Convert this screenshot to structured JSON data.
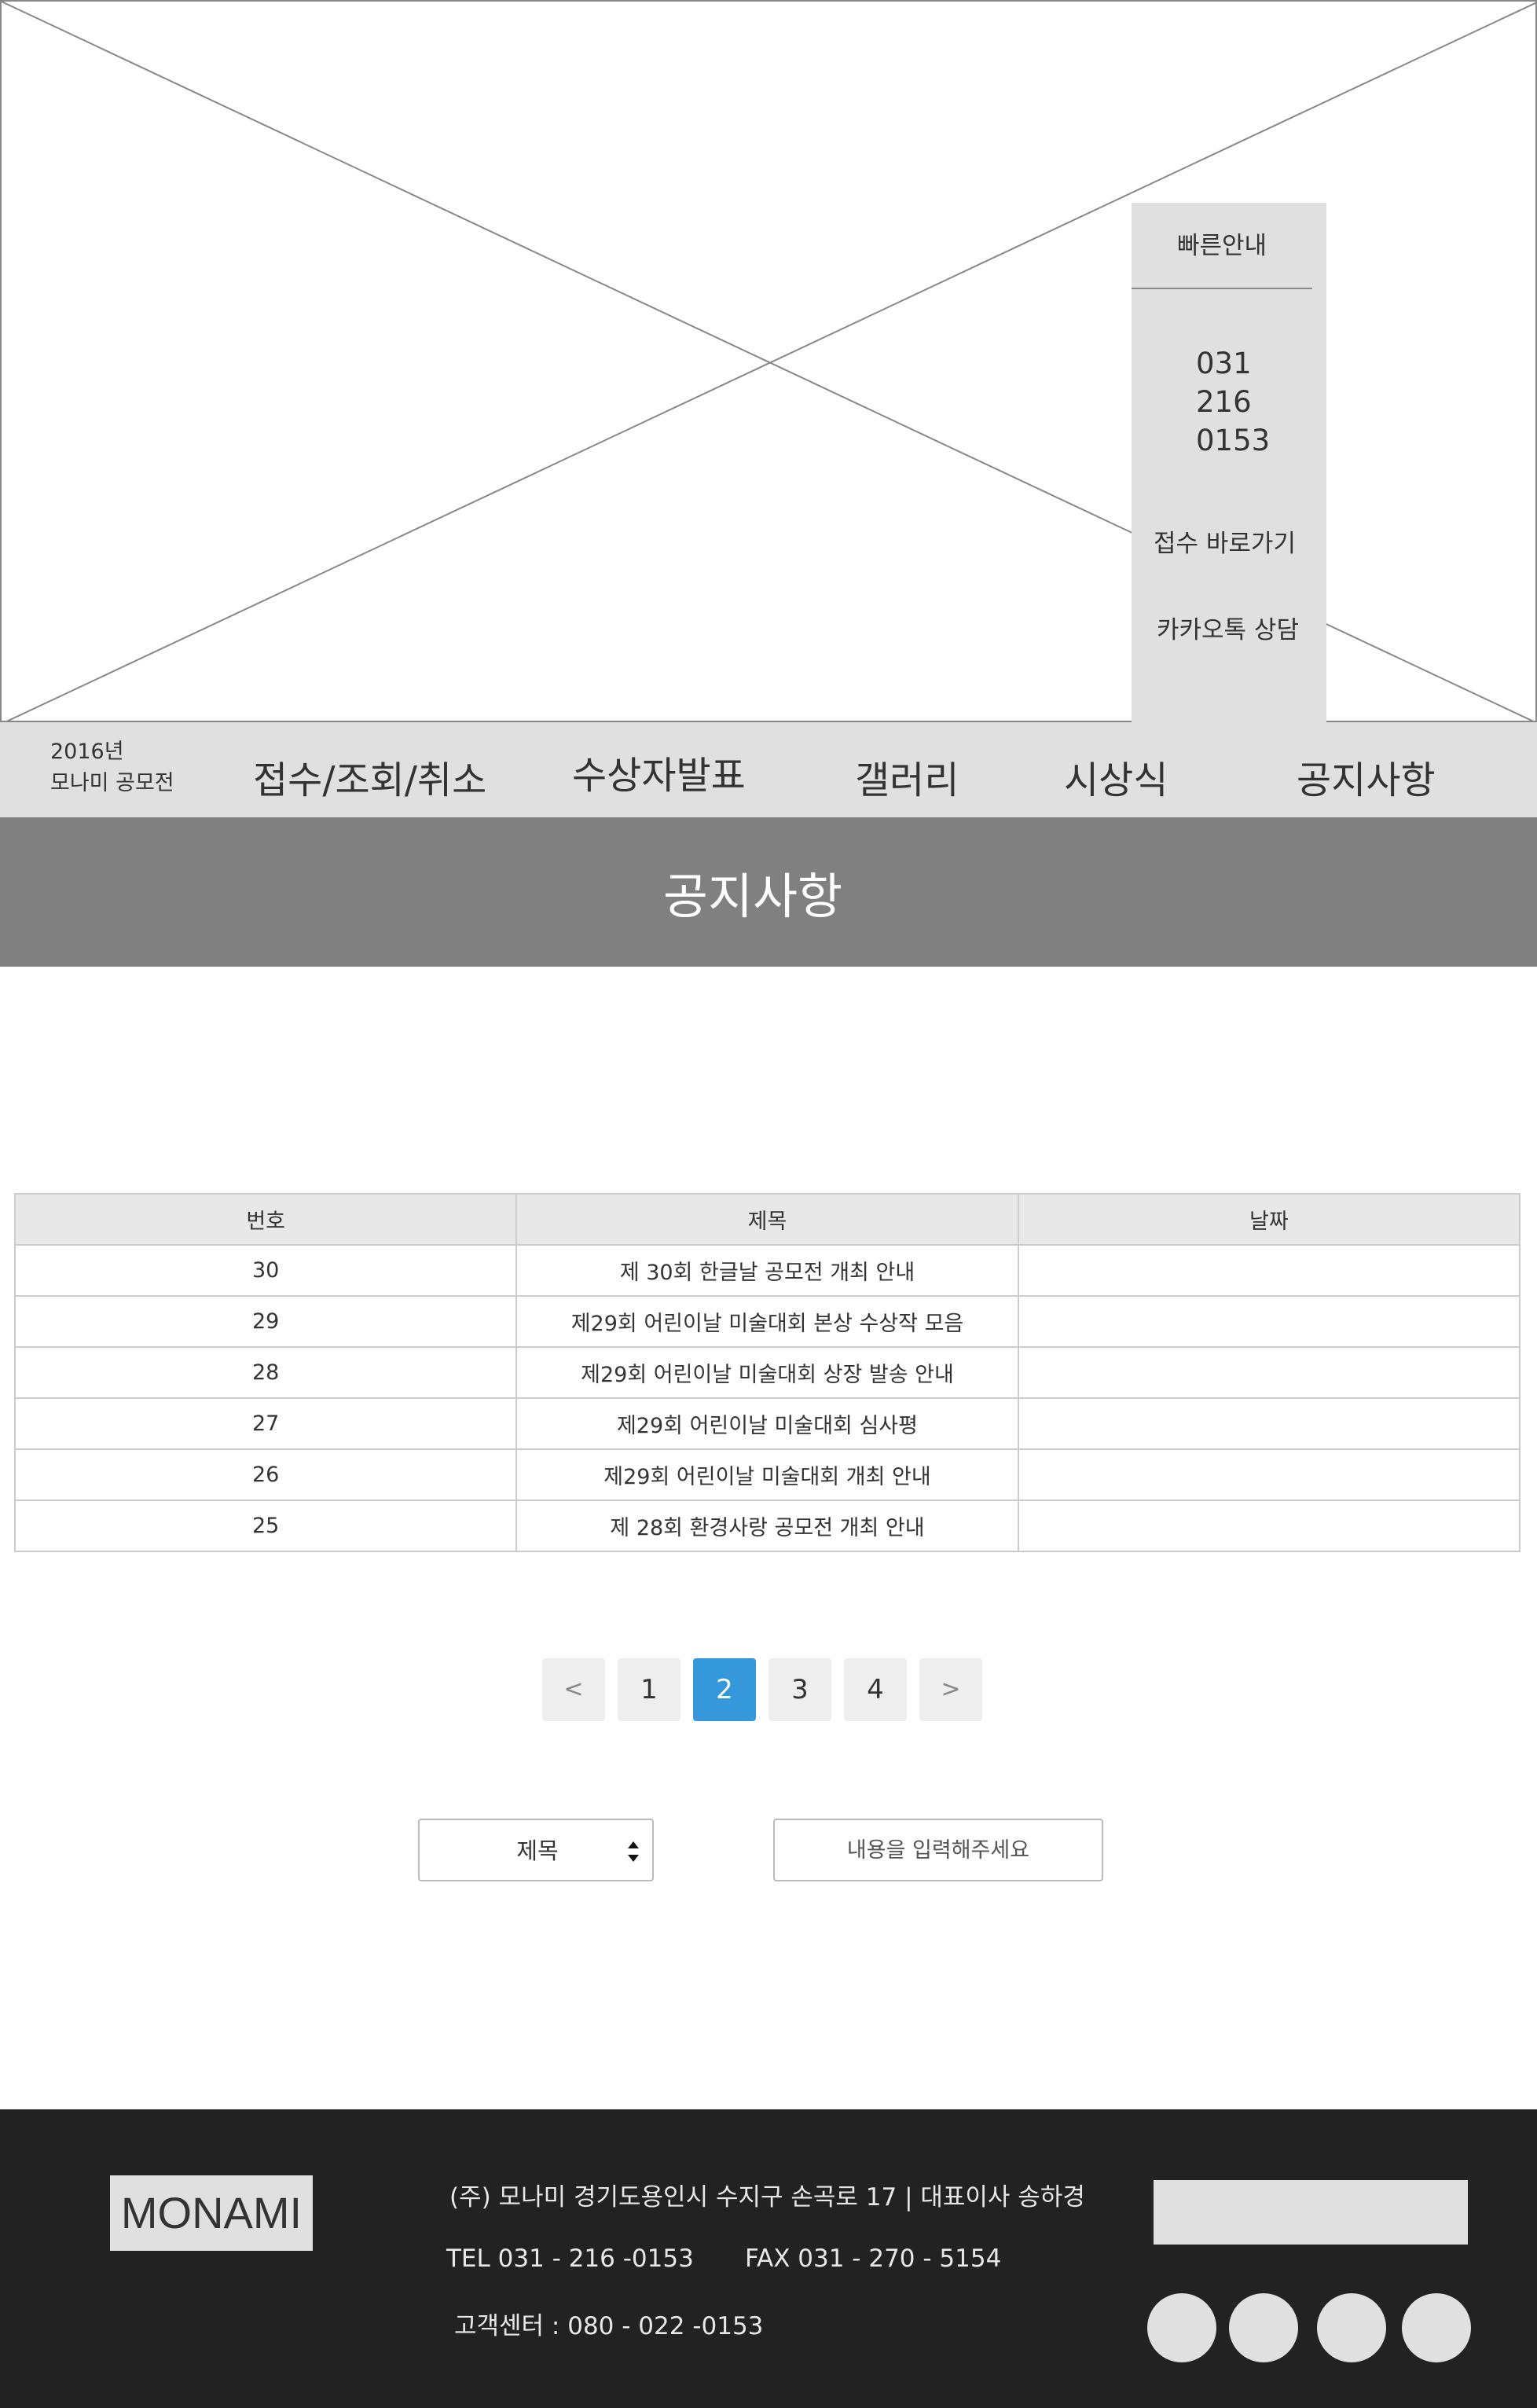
{
  "quick_guide": {
    "title": "빠른안내",
    "phone": [
      "031",
      "216",
      "0153"
    ],
    "apply_link": "접수 바로가기",
    "kakao_link": "카카오톡 상담"
  },
  "nav": {
    "brand_year": "2016년",
    "brand_name": "모나미 공모전",
    "items": [
      "접수/조회/취소",
      "수상자발표",
      "갤러리",
      "시상식",
      "공지사항"
    ]
  },
  "page_title": "공지사항",
  "table": {
    "headers": [
      "번호",
      "제목",
      "날짜"
    ],
    "rows": [
      {
        "num": "30",
        "title": "제 30회  한글날 공모전 개최 안내",
        "date": ""
      },
      {
        "num": "29",
        "title": "제29회 어린이날  미술대회  본상 수상작 모음",
        "date": ""
      },
      {
        "num": "28",
        "title": "제29회 어린이날 미술대회 상장 발송 안내",
        "date": ""
      },
      {
        "num": "27",
        "title": "제29회 어린이날 미술대회  심사평",
        "date": ""
      },
      {
        "num": "26",
        "title": "제29회 어린이날 미술대회  개최 안내",
        "date": ""
      },
      {
        "num": "25",
        "title": "제 28회  환경사랑 공모전 개최 안내",
        "date": ""
      }
    ]
  },
  "pagination": {
    "prev": "<",
    "pages": [
      "1",
      "2",
      "3",
      "4"
    ],
    "current": "2",
    "next": ">"
  },
  "search": {
    "select_value": "제목",
    "placeholder": "내용을 입력해주세요"
  },
  "footer": {
    "logo": "MONAMI",
    "address": "(주) 모나미  경기도용인시 수지구 손곡로 17 | 대표이사 송하경",
    "tel": "TEL 031 - 216 -0153",
    "fax": "FAX 031 - 270 - 5154",
    "customer_center": "고객센터  : 080 -  022 -0153"
  },
  "colors": {
    "panel_gray": "#e0e0e0",
    "title_band": "#808080",
    "active_page": "#3498db",
    "footer_bg": "#222222"
  }
}
